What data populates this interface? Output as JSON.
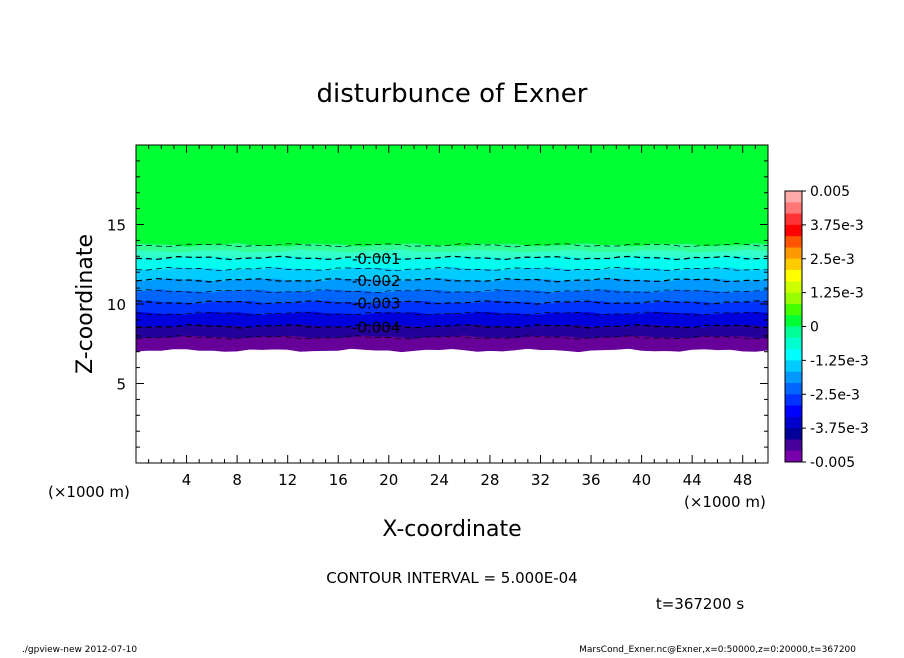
{
  "chart_data": {
    "type": "heatmap",
    "title": "disturbunce of Exner",
    "xlabel": "X-coordinate",
    "ylabel": "Z-coordinate",
    "x_unit": "(×1000 m)",
    "y_unit": "(×1000 m)",
    "xlim": [
      0,
      50
    ],
    "ylim": [
      0,
      20
    ],
    "x_ticks": [
      4,
      8,
      12,
      16,
      20,
      24,
      28,
      32,
      36,
      40,
      44,
      48
    ],
    "y_ticks": [
      5,
      10,
      15
    ],
    "grid": false,
    "contour_interval_text": "CONTOUR INTERVAL = 5.000E-04",
    "contour_labels": [
      {
        "text": "-0.001",
        "value": -0.001,
        "x": 19,
        "z": 12.9
      },
      {
        "text": "-0.002",
        "value": -0.002,
        "x": 19,
        "z": 11.5
      },
      {
        "text": "-0.003",
        "value": -0.003,
        "x": 19,
        "z": 10.1
      },
      {
        "text": "-0.004",
        "value": -0.004,
        "x": 19,
        "z": 8.6
      }
    ],
    "contour_levels": [
      {
        "value": -0.0005,
        "z": 13.7
      },
      {
        "value": -0.001,
        "z": 12.9
      },
      {
        "value": -0.0015,
        "z": 12.2
      },
      {
        "value": -0.002,
        "z": 11.5
      },
      {
        "value": -0.0025,
        "z": 10.8
      },
      {
        "value": -0.003,
        "z": 10.1
      },
      {
        "value": -0.0035,
        "z": 9.4
      },
      {
        "value": -0.004,
        "z": 8.6
      },
      {
        "value": -0.0045,
        "z": 7.9
      }
    ],
    "field_bands": [
      {
        "z0": 13.7,
        "z1": 20.0,
        "color": "#00ff33"
      },
      {
        "z0": 13.3,
        "z1": 13.7,
        "color": "#33ff99"
      },
      {
        "z0": 12.9,
        "z1": 13.3,
        "color": "#33ffcc"
      },
      {
        "z0": 12.2,
        "z1": 12.9,
        "color": "#00ffee"
      },
      {
        "z0": 11.5,
        "z1": 12.2,
        "color": "#00ccff"
      },
      {
        "z0": 10.8,
        "z1": 11.5,
        "color": "#0099ff"
      },
      {
        "z0": 10.1,
        "z1": 10.8,
        "color": "#0066ff"
      },
      {
        "z0": 9.4,
        "z1": 10.1,
        "color": "#0033ff"
      },
      {
        "z0": 8.6,
        "z1": 9.4,
        "color": "#0000dd"
      },
      {
        "z0": 7.9,
        "z1": 8.6,
        "color": "#220099"
      },
      {
        "z0": 7.1,
        "z1": 7.9,
        "color": "#660099"
      }
    ],
    "colorbar": {
      "labels": [
        "0.005",
        "3.75e-3",
        "2.5e-3",
        "1.25e-3",
        "0",
        "-1.25e-3",
        "-2.5e-3",
        "-3.75e-3",
        "-0.005"
      ],
      "colors": [
        "#ffaaaa",
        "#ff7777",
        "#ff3333",
        "#ff0000",
        "#ff5500",
        "#ff9900",
        "#ffcc00",
        "#ffff00",
        "#ccff00",
        "#99ff00",
        "#44ff00",
        "#00ff33",
        "#00ff99",
        "#00ffcc",
        "#00ffff",
        "#00ccff",
        "#0099ff",
        "#0066ff",
        "#0033ff",
        "#0000ff",
        "#0000cc",
        "#000099",
        "#440099",
        "#7700aa"
      ]
    }
  },
  "timestamp_text": "t=367200 s",
  "footer": {
    "left": "./gpview-new   2012-07-10",
    "right": "MarsCond_Exner.nc@Exner,x=0:50000,z=0:20000,t=367200"
  }
}
